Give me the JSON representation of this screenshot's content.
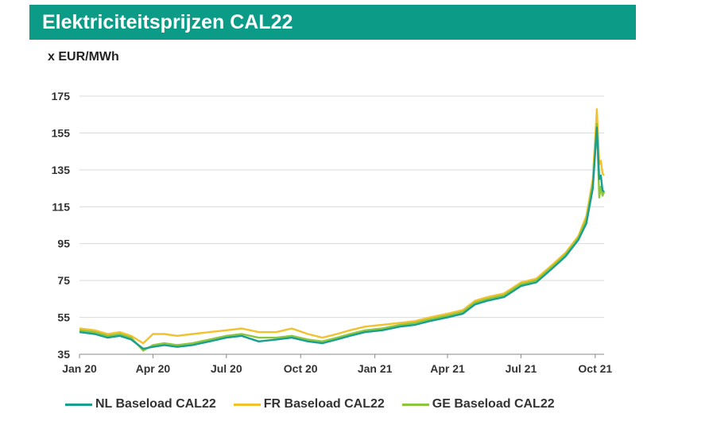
{
  "header": {
    "title": "Elektriciteitsprijzen CAL22",
    "accent": "#0b9b87"
  },
  "chart_data": {
    "type": "line",
    "title": "Elektriciteitsprijzen CAL22",
    "ylabel": "x EUR/MWh",
    "xlabel": "",
    "ylim": [
      35,
      175
    ],
    "yticks": [
      "175",
      "155",
      "135",
      "115",
      "95",
      "75",
      "55",
      "35"
    ],
    "ytick_values": [
      175,
      155,
      135,
      115,
      95,
      75,
      55,
      35
    ],
    "xticks": [
      "Jan 20",
      "Apr 20",
      "Jul 20",
      "Oct 20",
      "Jan 21",
      "Apr 21",
      "Jul 21",
      "Oct 21"
    ],
    "xtick_dates": [
      "2020-01-01",
      "2020-04-01",
      "2020-07-01",
      "2020-10-01",
      "2021-01-01",
      "2021-04-01",
      "2021-07-01",
      "2021-10-01"
    ],
    "xlim": [
      "2020-01-01",
      "2021-10-12"
    ],
    "grid": "horizontal",
    "legend": "bottom",
    "series": [
      {
        "name": "NL Baseload CAL22",
        "color": "#1a9e8f",
        "points": [
          [
            "2020-01-01",
            47
          ],
          [
            "2020-01-20",
            46
          ],
          [
            "2020-02-05",
            44
          ],
          [
            "2020-02-20",
            45
          ],
          [
            "2020-03-05",
            43
          ],
          [
            "2020-03-20",
            38
          ],
          [
            "2020-04-01",
            39
          ],
          [
            "2020-04-15",
            40
          ],
          [
            "2020-05-01",
            39
          ],
          [
            "2020-05-20",
            40
          ],
          [
            "2020-06-10",
            42
          ],
          [
            "2020-07-01",
            44
          ],
          [
            "2020-07-20",
            45
          ],
          [
            "2020-08-10",
            42
          ],
          [
            "2020-09-01",
            43
          ],
          [
            "2020-09-20",
            44
          ],
          [
            "2020-10-10",
            42
          ],
          [
            "2020-10-28",
            41
          ],
          [
            "2020-11-15",
            43
          ],
          [
            "2020-12-01",
            45
          ],
          [
            "2020-12-20",
            47
          ],
          [
            "2021-01-10",
            48
          ],
          [
            "2021-02-01",
            50
          ],
          [
            "2021-02-20",
            51
          ],
          [
            "2021-03-10",
            53
          ],
          [
            "2021-04-01",
            55
          ],
          [
            "2021-04-20",
            57
          ],
          [
            "2021-05-05",
            62
          ],
          [
            "2021-05-20",
            64
          ],
          [
            "2021-06-10",
            66
          ],
          [
            "2021-07-01",
            72
          ],
          [
            "2021-07-20",
            74
          ],
          [
            "2021-08-10",
            82
          ],
          [
            "2021-08-25",
            88
          ],
          [
            "2021-09-10",
            97
          ],
          [
            "2021-09-20",
            106
          ],
          [
            "2021-09-28",
            125
          ],
          [
            "2021-10-03",
            158
          ],
          [
            "2021-10-06",
            130
          ],
          [
            "2021-10-08",
            132
          ],
          [
            "2021-10-10",
            124
          ],
          [
            "2021-10-12",
            123
          ]
        ]
      },
      {
        "name": "FR Baseload CAL22",
        "color": "#f2c12e",
        "points": [
          [
            "2020-01-01",
            49
          ],
          [
            "2020-01-20",
            48
          ],
          [
            "2020-02-05",
            46
          ],
          [
            "2020-02-20",
            47
          ],
          [
            "2020-03-05",
            45
          ],
          [
            "2020-03-20",
            41
          ],
          [
            "2020-04-01",
            46
          ],
          [
            "2020-04-15",
            46
          ],
          [
            "2020-05-01",
            45
          ],
          [
            "2020-05-20",
            46
          ],
          [
            "2020-06-10",
            47
          ],
          [
            "2020-07-01",
            48
          ],
          [
            "2020-07-20",
            49
          ],
          [
            "2020-08-10",
            47
          ],
          [
            "2020-09-01",
            47
          ],
          [
            "2020-09-20",
            49
          ],
          [
            "2020-10-10",
            46
          ],
          [
            "2020-10-28",
            44
          ],
          [
            "2020-11-15",
            46
          ],
          [
            "2020-12-01",
            48
          ],
          [
            "2020-12-20",
            50
          ],
          [
            "2021-01-10",
            51
          ],
          [
            "2021-02-01",
            52
          ],
          [
            "2021-02-20",
            53
          ],
          [
            "2021-03-10",
            55
          ],
          [
            "2021-04-01",
            57
          ],
          [
            "2021-04-20",
            59
          ],
          [
            "2021-05-05",
            64
          ],
          [
            "2021-05-20",
            66
          ],
          [
            "2021-06-10",
            68
          ],
          [
            "2021-07-01",
            74
          ],
          [
            "2021-07-20",
            76
          ],
          [
            "2021-08-10",
            84
          ],
          [
            "2021-08-25",
            90
          ],
          [
            "2021-09-10",
            99
          ],
          [
            "2021-09-20",
            110
          ],
          [
            "2021-09-28",
            130
          ],
          [
            "2021-10-03",
            168
          ],
          [
            "2021-10-06",
            138
          ],
          [
            "2021-10-08",
            140
          ],
          [
            "2021-10-10",
            133
          ],
          [
            "2021-10-12",
            132
          ]
        ]
      },
      {
        "name": "GE Baseload CAL22",
        "color": "#8cc63e",
        "points": [
          [
            "2020-01-01",
            48
          ],
          [
            "2020-01-20",
            47
          ],
          [
            "2020-02-05",
            45
          ],
          [
            "2020-02-20",
            46
          ],
          [
            "2020-03-05",
            44
          ],
          [
            "2020-03-20",
            37
          ],
          [
            "2020-04-01",
            40
          ],
          [
            "2020-04-15",
            41
          ],
          [
            "2020-05-01",
            40
          ],
          [
            "2020-05-20",
            41
          ],
          [
            "2020-06-10",
            43
          ],
          [
            "2020-07-01",
            45
          ],
          [
            "2020-07-20",
            46
          ],
          [
            "2020-08-10",
            44
          ],
          [
            "2020-09-01",
            44
          ],
          [
            "2020-09-20",
            45
          ],
          [
            "2020-10-10",
            43
          ],
          [
            "2020-10-28",
            42
          ],
          [
            "2020-11-15",
            44
          ],
          [
            "2020-12-01",
            46
          ],
          [
            "2020-12-20",
            48
          ],
          [
            "2021-01-10",
            49
          ],
          [
            "2021-02-01",
            51
          ],
          [
            "2021-02-20",
            52
          ],
          [
            "2021-03-10",
            54
          ],
          [
            "2021-04-01",
            56
          ],
          [
            "2021-04-20",
            58
          ],
          [
            "2021-05-05",
            63
          ],
          [
            "2021-05-20",
            65
          ],
          [
            "2021-06-10",
            67
          ],
          [
            "2021-07-01",
            73
          ],
          [
            "2021-07-20",
            75
          ],
          [
            "2021-08-10",
            83
          ],
          [
            "2021-08-25",
            89
          ],
          [
            "2021-09-10",
            98
          ],
          [
            "2021-09-20",
            108
          ],
          [
            "2021-09-28",
            127
          ],
          [
            "2021-10-03",
            160
          ],
          [
            "2021-10-06",
            120
          ],
          [
            "2021-10-08",
            126
          ],
          [
            "2021-10-10",
            121
          ],
          [
            "2021-10-12",
            123
          ]
        ]
      }
    ]
  }
}
